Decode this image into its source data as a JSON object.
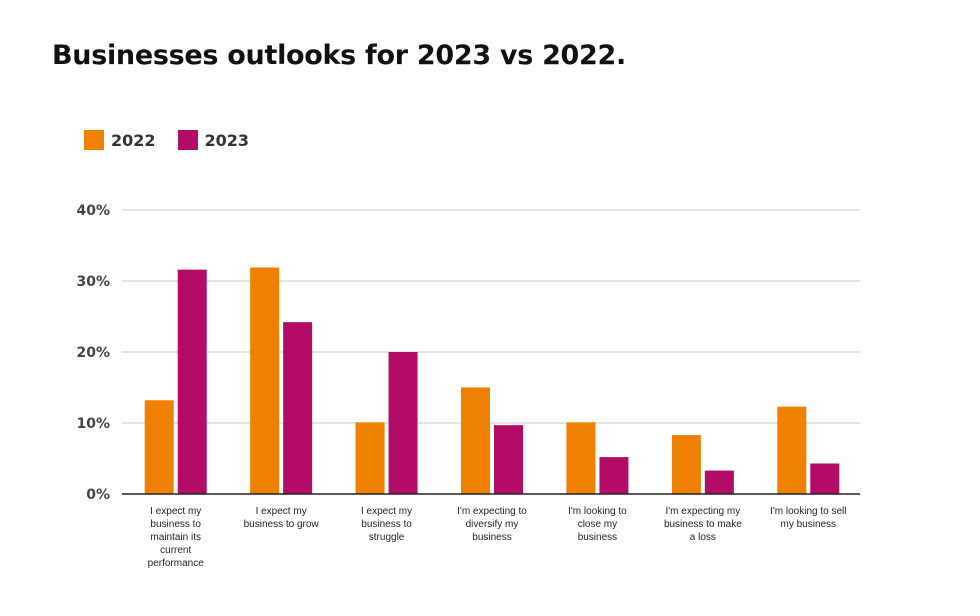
{
  "chart_data": {
    "type": "bar",
    "title": "Businesses outlooks for 2023 vs 2022.",
    "xlabel": "",
    "ylabel": "",
    "ylim": [
      0,
      40
    ],
    "yticks": [
      0,
      10,
      20,
      30,
      40
    ],
    "ytick_labels": [
      "0%",
      "10%",
      "20%",
      "30%",
      "40%"
    ],
    "grid": true,
    "legend_position": "top-left",
    "categories": [
      [
        "I expect my",
        "business to",
        "maintain its",
        "current",
        "performance"
      ],
      [
        "I expect my",
        "business to grow"
      ],
      [
        "I expect my",
        "business to",
        "struggle"
      ],
      [
        "I'm expecting to",
        "diversify my",
        "business"
      ],
      [
        "I'm looking to",
        "close my",
        "business"
      ],
      [
        "I'm expecting my",
        "business to make",
        "a loss"
      ],
      [
        "I'm looking to sell",
        "my business"
      ]
    ],
    "series": [
      {
        "name": "2022",
        "color": "#F08000",
        "values": [
          13.2,
          31.9,
          10.1,
          15.0,
          10.1,
          8.3,
          12.3
        ]
      },
      {
        "name": "2023",
        "color": "#B30C66",
        "values": [
          31.6,
          24.2,
          20.0,
          9.7,
          5.2,
          3.3,
          4.3
        ]
      }
    ]
  }
}
